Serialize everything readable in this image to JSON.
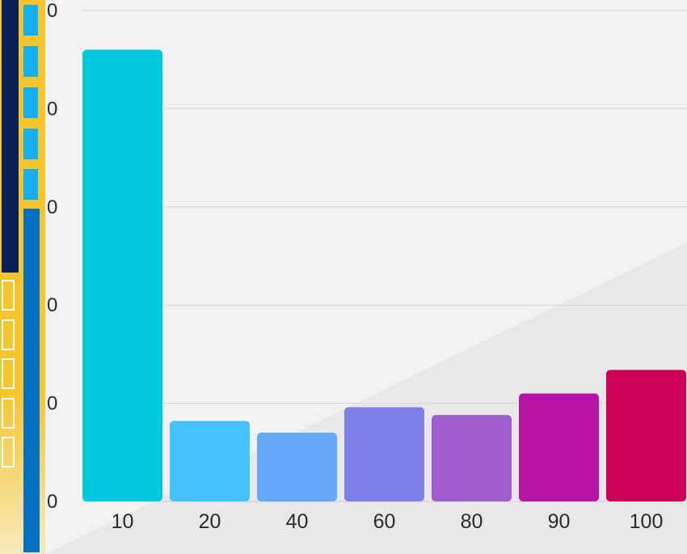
{
  "chart_data": {
    "type": "bar",
    "categories": [
      "10",
      "20",
      "40",
      "60",
      "80",
      "90",
      "100"
    ],
    "values": [
      4.6,
      0.82,
      0.7,
      0.96,
      0.88,
      1.1,
      1.34
    ],
    "y_tick_labels": [
      "0",
      "0",
      "0",
      "0",
      "0",
      "0"
    ],
    "ylim": [
      0,
      5
    ],
    "grid": true,
    "title": "",
    "xlabel": "",
    "ylabel": ""
  },
  "colors": {
    "background": "#f2f2f2",
    "background_wedge": "#e8e8ea",
    "gridline": "#d6d6d6",
    "axis_text": "#2b2b2b",
    "bars": [
      "#00c8dd",
      "#45c3fa",
      "#66a8f8",
      "#7f80e6",
      "#9e5ccf",
      "#b814a4",
      "#cc0056"
    ],
    "deco_navy": "#0a1f55",
    "deco_gold": "#f6c42c",
    "deco_blue": "#0571c0",
    "deco_cyan": "#10b0f2"
  }
}
